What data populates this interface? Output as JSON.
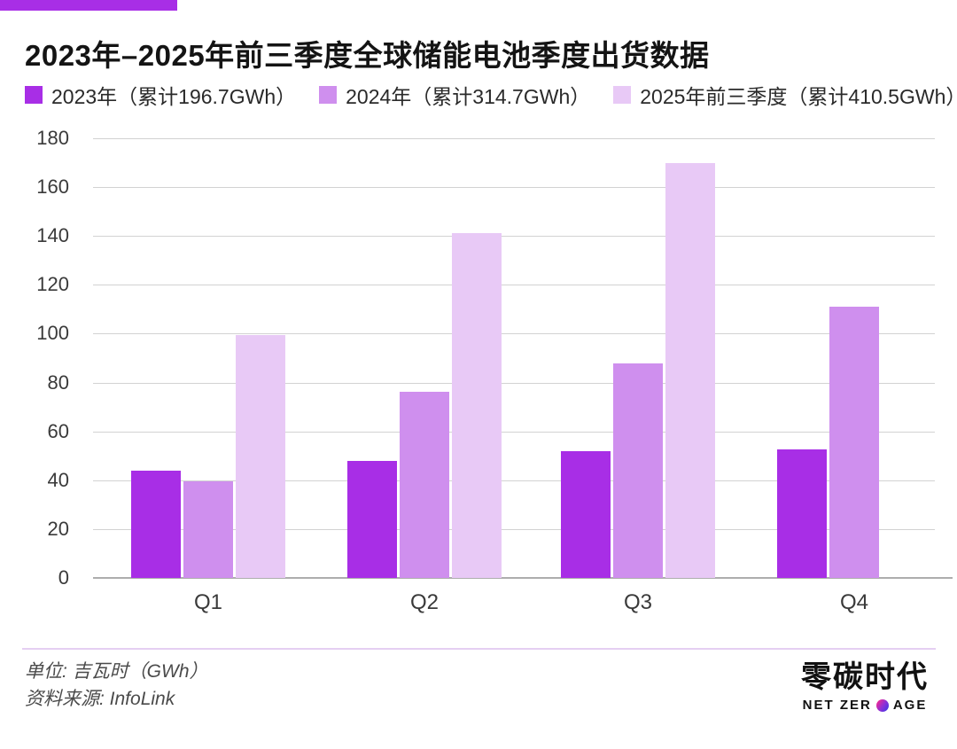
{
  "page": {
    "accent_color": "#a82ee6",
    "title": "2023年–2025年前三季度全球储能电池季度出货数据"
  },
  "legend": [
    {
      "label": "2023年（累计196.7GWh）",
      "color": "#a82ee6"
    },
    {
      "label": "2024年（累计314.7GWh）",
      "color": "#cf8fee"
    },
    {
      "label": "2025年前三季度（累计410.5GWh）",
      "color": "#e8c9f6"
    }
  ],
  "chart_data": {
    "type": "bar",
    "title": "2023年–2025年前三季度全球储能电池季度出货数据",
    "categories": [
      "Q1",
      "Q2",
      "Q3",
      "Q4"
    ],
    "series": [
      {
        "name": "2023年（累计196.7GWh）",
        "color": "#a82ee6",
        "values": [
          44,
          48,
          52,
          52.7
        ]
      },
      {
        "name": "2024年（累计314.7GWh）",
        "color": "#cf8fee",
        "values": [
          39.5,
          76.2,
          88,
          111
        ]
      },
      {
        "name": "2025年前三季度（累计410.5GWh）",
        "color": "#e8c9f6",
        "values": [
          99.5,
          141,
          170,
          null
        ]
      }
    ],
    "xlabel": "",
    "ylabel": "GWh",
    "ylim": [
      0,
      180
    ],
    "ytick_step": 20,
    "grid": true,
    "legend_position": "top"
  },
  "footer": {
    "unit_label": "单位: 吉瓦时（GWh）",
    "source_label": "资料来源: InfoLink"
  },
  "logo": {
    "cn": "零碳时代",
    "en_left": "NET ZER",
    "en_right": "AGE"
  }
}
